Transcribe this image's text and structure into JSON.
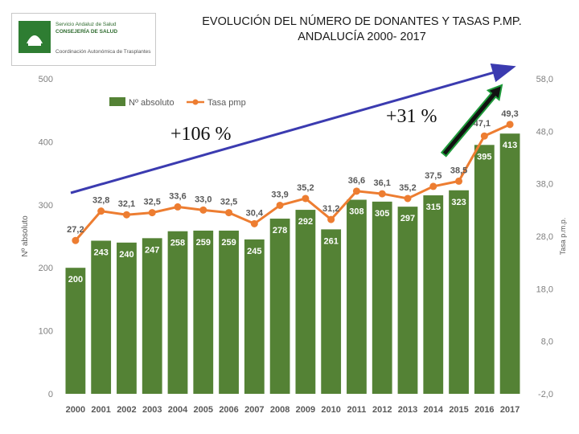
{
  "header": {
    "title_line1": "EVOLUCIÓN DEL NÚMERO DE DONANTES Y TASAS P.MP.",
    "title_line2": "ANDALUCÍA 2000- 2017"
  },
  "logo": {
    "line1": "Servicio Andaluz de Salud",
    "line2": "CONSEJERÍA DE SALUD",
    "line3": "Coordinación Autonómica de Trasplantes"
  },
  "annotations": {
    "left_growth": "+106 %",
    "right_growth": "+31 %",
    "arrow_color": "#3b3bb0",
    "arrow2_color": "#111111",
    "arrow2_outline": "#1e9a3a"
  },
  "chart_data": {
    "type": "bar",
    "categories": [
      "2000",
      "2001",
      "2002",
      "2003",
      "2004",
      "2005",
      "2006",
      "2007",
      "2008",
      "2009",
      "2010",
      "2011",
      "2012",
      "2013",
      "2014",
      "2015",
      "2016",
      "2017"
    ],
    "series": [
      {
        "name": "Nº absoluto",
        "type": "bar",
        "axis": "left",
        "color": "#548235",
        "values": [
          200,
          243,
          240,
          247,
          258,
          259,
          259,
          245,
          278,
          292,
          261,
          308,
          305,
          297,
          315,
          323,
          395,
          413
        ],
        "labels": [
          "200",
          "243",
          "240",
          "247",
          "258",
          "259",
          "259",
          "245",
          "278",
          "292",
          "261",
          "308",
          "305",
          "297",
          "315",
          "323",
          "395",
          "413"
        ]
      },
      {
        "name": "Tasa pmp",
        "type": "line",
        "axis": "right",
        "color": "#ed7d31",
        "values": [
          27.2,
          32.8,
          32.1,
          32.5,
          33.6,
          33.0,
          32.5,
          30.4,
          33.9,
          35.2,
          31.2,
          36.6,
          36.1,
          35.2,
          37.5,
          38.5,
          47.1,
          49.3
        ],
        "labels": [
          "27,2",
          "32,8",
          "32,1",
          "32,5",
          "33,6",
          "33,0",
          "32,5",
          "30,4",
          "33,9",
          "35,2",
          "31,2",
          "36,6",
          "36,1",
          "35,2",
          "37,5",
          "38,5",
          "47,1",
          "49,3"
        ]
      }
    ],
    "ylabel": "Nº absoluto",
    "ylabel_right": "Tasa p.m.p.",
    "ylim": [
      0,
      500
    ],
    "ylim_right": [
      -2.0,
      58.0
    ],
    "yticks": [
      "0",
      "100",
      "200",
      "300",
      "400",
      "500"
    ],
    "yticks_right": [
      "-2,0",
      "8,0",
      "18,0",
      "28,0",
      "38,0",
      "48,0",
      "58,0"
    ],
    "legend_position": "top-left",
    "grid": false
  }
}
